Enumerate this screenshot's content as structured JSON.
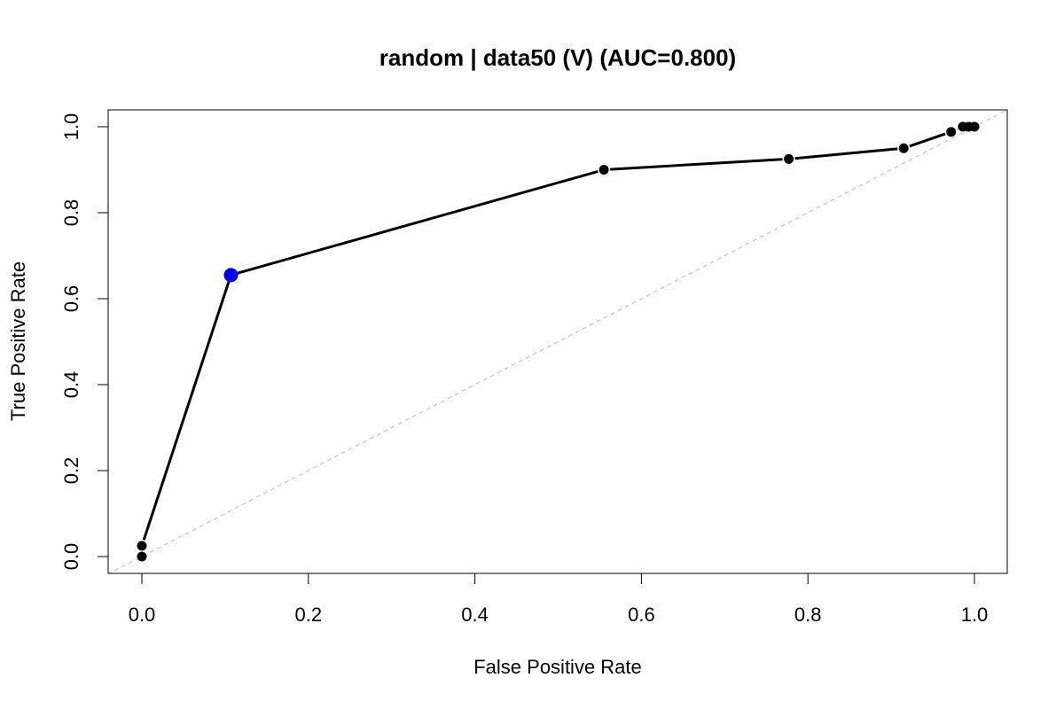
{
  "chart_data": {
    "type": "line",
    "title": "random | data50 (V) (AUC=0.800)",
    "xlabel": "False Positive Rate",
    "ylabel": "True Positive Rate",
    "xlim": [
      0,
      1
    ],
    "ylim": [
      0,
      1
    ],
    "x_ticks": [
      "0.0",
      "0.2",
      "0.4",
      "0.6",
      "0.8",
      "1.0"
    ],
    "y_ticks": [
      "0.0",
      "0.2",
      "0.4",
      "0.6",
      "0.8",
      "1.0"
    ],
    "grid": false,
    "legend": "none",
    "colors": {
      "curve": "#000000",
      "point": "#000000",
      "highlight": "#0000ee",
      "diagonal": "#bebebe"
    },
    "reference_line": {
      "x": [
        0,
        1
      ],
      "y": [
        0,
        1
      ],
      "style": "dashed"
    },
    "series": [
      {
        "x": [
          0.0,
          0.0,
          0.107,
          0.555,
          0.777,
          0.915,
          0.972,
          0.986,
          0.993,
          1.0
        ],
        "y": [
          0.0,
          0.025,
          0.655,
          0.9,
          0.925,
          0.95,
          0.988,
          1.0,
          1.0,
          1.0
        ]
      }
    ],
    "highlight_point": {
      "x": 0.107,
      "y": 0.655
    }
  }
}
